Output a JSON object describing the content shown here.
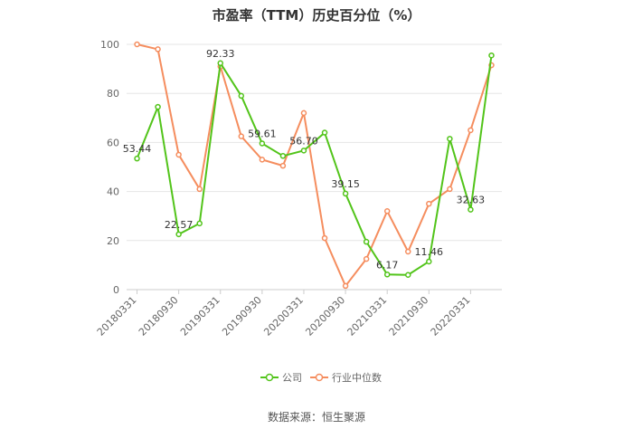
{
  "chart_data": {
    "type": "line",
    "title": "市盈率（TTM）历史百分位（%）",
    "xlabel": "",
    "ylabel": "",
    "ylim": [
      0,
      100
    ],
    "yticks": [
      0,
      20,
      40,
      60,
      80,
      100
    ],
    "grid": true,
    "legend_position": "bottom",
    "x": [
      "20180331",
      "20180630",
      "20180930",
      "20181231",
      "20190331",
      "20190630",
      "20190930",
      "20191231",
      "20200331",
      "20200630",
      "20200930",
      "20201231",
      "20210331",
      "20210630",
      "20210930",
      "20211231",
      "20220331",
      "20220630"
    ],
    "xtick_labels": [
      "20180331",
      "20180930",
      "20190331",
      "20190930",
      "20200331",
      "20200930",
      "20210331",
      "20210930",
      "20220331"
    ],
    "series": [
      {
        "name": "公司",
        "color": "#52c41a",
        "values": [
          53.44,
          74.5,
          22.57,
          27.0,
          92.33,
          79.0,
          59.61,
          54.5,
          56.7,
          64.0,
          39.15,
          19.5,
          6.17,
          6.0,
          11.46,
          61.5,
          32.63,
          95.5
        ],
        "labels": [
          "53.44",
          null,
          "22.57",
          null,
          "92.33",
          null,
          "59.61",
          null,
          "56.70",
          null,
          "39.15",
          null,
          "6.17",
          null,
          "11.46",
          null,
          "32.63",
          null
        ]
      },
      {
        "name": "行业中位数",
        "color": "#f58d5e",
        "values": [
          100,
          98,
          55,
          41,
          91,
          62.5,
          53,
          50.5,
          72,
          21,
          1.5,
          12.5,
          32,
          15.5,
          35,
          41,
          65,
          91.5
        ]
      }
    ]
  },
  "source": "数据来源：恒生聚源"
}
